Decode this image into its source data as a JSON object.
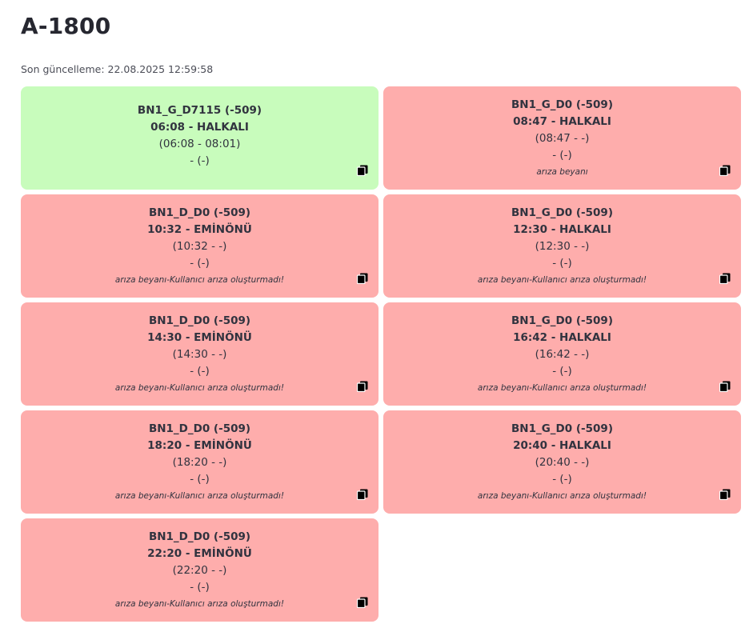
{
  "header": {
    "title": "A-1800",
    "updated": "Son güncelleme: 22.08.2025 12:59:58"
  },
  "colors": {
    "ok": "#c8fcbc",
    "fail": "#feadac",
    "text": "#31333f"
  },
  "cards": [
    {
      "status": "ok",
      "code": "BN1_G_D7115 (-509)",
      "departure": "06:08 - HALKALI",
      "times": "(06:08 - 08:01)",
      "extra": "- (-)",
      "note": "",
      "icon": "copy-icon"
    },
    {
      "status": "fail",
      "code": "BN1_G_D0 (-509)",
      "departure": "08:47 - HALKALI",
      "times": "(08:47 - -)",
      "extra": "- (-)",
      "note": "arıza beyanı",
      "icon": "copy-icon"
    },
    {
      "status": "fail",
      "code": "BN1_D_D0 (-509)",
      "departure": "10:32 - EMİNÖNÜ",
      "times": "(10:32 - -)",
      "extra": "- (-)",
      "note": "arıza beyanı-Kullanıcı arıza oluşturmadı!",
      "icon": "copy-icon"
    },
    {
      "status": "fail",
      "code": "BN1_G_D0 (-509)",
      "departure": "12:30 - HALKALI",
      "times": "(12:30 - -)",
      "extra": "- (-)",
      "note": "arıza beyanı-Kullanıcı arıza oluşturmadı!",
      "icon": "copy-icon"
    },
    {
      "status": "fail",
      "code": "BN1_D_D0 (-509)",
      "departure": "14:30 - EMİNÖNÜ",
      "times": "(14:30 - -)",
      "extra": "- (-)",
      "note": "arıza beyanı-Kullanıcı arıza oluşturmadı!",
      "icon": "copy-icon"
    },
    {
      "status": "fail",
      "code": "BN1_G_D0 (-509)",
      "departure": "16:42 - HALKALI",
      "times": "(16:42 - -)",
      "extra": "- (-)",
      "note": "arıza beyanı-Kullanıcı arıza oluşturmadı!",
      "icon": "copy-icon"
    },
    {
      "status": "fail",
      "code": "BN1_D_D0 (-509)",
      "departure": "18:20 - EMİNÖNÜ",
      "times": "(18:20 - -)",
      "extra": "- (-)",
      "note": "arıza beyanı-Kullanıcı arıza oluşturmadı!",
      "icon": "copy-icon"
    },
    {
      "status": "fail",
      "code": "BN1_G_D0 (-509)",
      "departure": "20:40 - HALKALI",
      "times": "(20:40 - -)",
      "extra": "- (-)",
      "note": "arıza beyanı-Kullanıcı arıza oluşturmadı!",
      "icon": "copy-icon"
    },
    {
      "status": "fail",
      "code": "BN1_D_D0 (-509)",
      "departure": "22:20 - EMİNÖNÜ",
      "times": "(22:20 - -)",
      "extra": "- (-)",
      "note": "arıza beyanı-Kullanıcı arıza oluşturmadı!",
      "icon": "copy-icon"
    }
  ]
}
